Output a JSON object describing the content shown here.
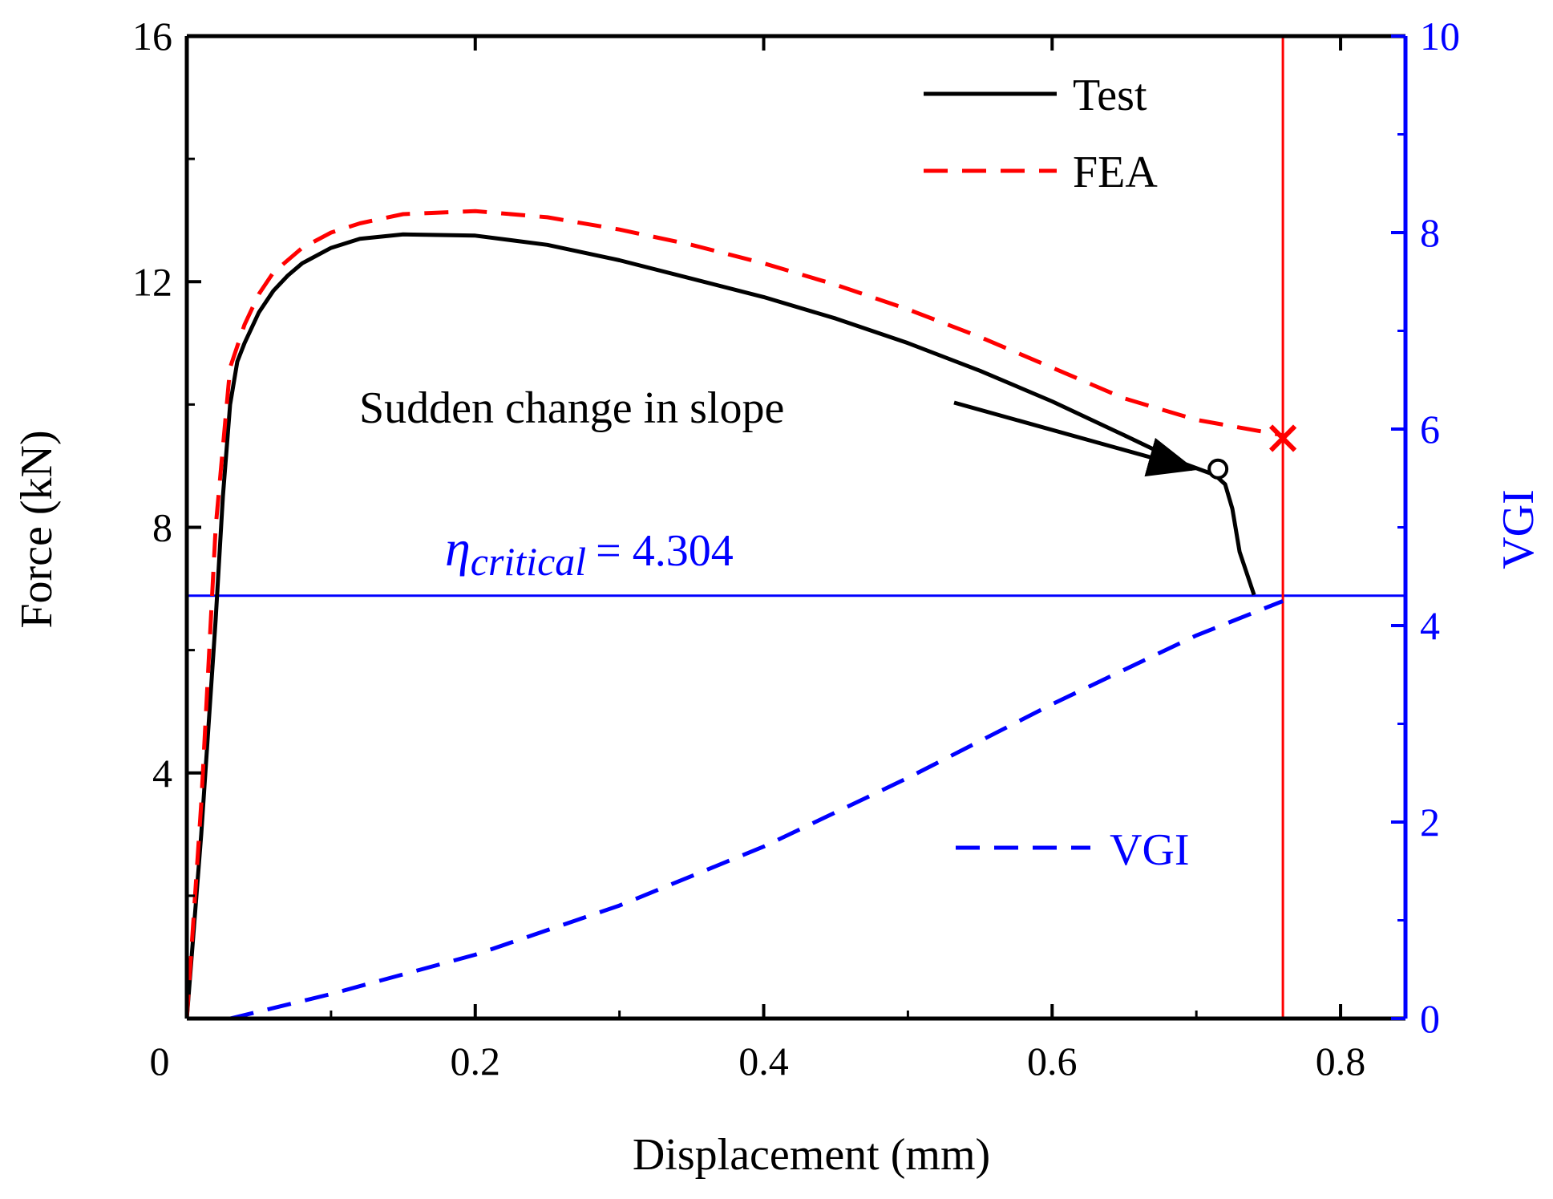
{
  "chart_data": {
    "type": "line",
    "xlabel": "Displacement (mm)",
    "ylabel_left": "Force (kN)",
    "ylabel_right": "VGI",
    "xlim": [
      0,
      0.845
    ],
    "ylim_left": [
      0,
      16
    ],
    "ylim_right": [
      0,
      10
    ],
    "x_ticks": [
      {
        "value": 0,
        "label": "0"
      },
      {
        "value": 0.2,
        "label": "0.2"
      },
      {
        "value": 0.4,
        "label": "0.4"
      },
      {
        "value": 0.6,
        "label": "0.6"
      },
      {
        "value": 0.8,
        "label": "0.8"
      }
    ],
    "y_left_ticks": [
      {
        "value": 4,
        "label": "4"
      },
      {
        "value": 8,
        "label": "8"
      },
      {
        "value": 12,
        "label": "12"
      },
      {
        "value": 16,
        "label": "16"
      }
    ],
    "y_right_ticks": [
      {
        "value": 0,
        "label": "0"
      },
      {
        "value": 2,
        "label": "2"
      },
      {
        "value": 4,
        "label": "4"
      },
      {
        "value": 6,
        "label": "6"
      },
      {
        "value": 8,
        "label": "8"
      },
      {
        "value": 10,
        "label": "10"
      }
    ],
    "grid": false,
    "legend_position": "top-right",
    "series": [
      {
        "name": "Test",
        "axis": "left",
        "color": "#000000",
        "style": "solid",
        "x": [
          0.0,
          0.01,
          0.02,
          0.025,
          0.03,
          0.035,
          0.04,
          0.05,
          0.06,
          0.07,
          0.08,
          0.1,
          0.12,
          0.15,
          0.2,
          0.25,
          0.3,
          0.35,
          0.4,
          0.45,
          0.5,
          0.55,
          0.6,
          0.65,
          0.69,
          0.713,
          0.72,
          0.725,
          0.73,
          0.74
        ],
        "y": [
          0.0,
          3.0,
          6.5,
          8.5,
          10.0,
          10.7,
          11.0,
          11.5,
          11.85,
          12.1,
          12.3,
          12.55,
          12.7,
          12.77,
          12.75,
          12.6,
          12.35,
          12.05,
          11.75,
          11.4,
          11.0,
          10.55,
          10.05,
          9.5,
          9.05,
          8.85,
          8.7,
          8.3,
          7.6,
          6.9
        ]
      },
      {
        "name": "FEA",
        "axis": "left",
        "color": "#ff0000",
        "style": "dashed",
        "x": [
          0.0,
          0.01,
          0.02,
          0.03,
          0.04,
          0.05,
          0.06,
          0.08,
          0.1,
          0.12,
          0.15,
          0.2,
          0.25,
          0.3,
          0.35,
          0.4,
          0.45,
          0.5,
          0.55,
          0.6,
          0.65,
          0.7,
          0.76
        ],
        "y": [
          0.0,
          3.5,
          8.0,
          10.6,
          11.3,
          11.8,
          12.15,
          12.55,
          12.8,
          12.95,
          13.1,
          13.15,
          13.05,
          12.85,
          12.6,
          12.3,
          11.95,
          11.55,
          11.1,
          10.6,
          10.1,
          9.75,
          9.5
        ]
      },
      {
        "name": "VGI",
        "axis": "right",
        "color": "#0000ff",
        "style": "dashed",
        "x": [
          0.03,
          0.1,
          0.2,
          0.3,
          0.4,
          0.5,
          0.6,
          0.7,
          0.76
        ],
        "y": [
          0.0,
          0.25,
          0.65,
          1.15,
          1.75,
          2.45,
          3.2,
          3.9,
          4.25
        ]
      }
    ],
    "markers": [
      {
        "type": "circle",
        "axis": "left",
        "x": 0.715,
        "y": 8.95
      },
      {
        "type": "x",
        "axis": "left",
        "x": 0.76,
        "y": 9.45,
        "color": "#ff0000"
      }
    ],
    "reference_lines": [
      {
        "orientation": "horizontal",
        "axis": "right",
        "value": 4.304,
        "color": "#0000ff"
      },
      {
        "orientation": "vertical",
        "value": 0.76,
        "color": "#ff0000"
      }
    ],
    "annotations": {
      "slope_text": "Sudden change in slope",
      "eta_symbol": "η",
      "eta_subscript": "critical",
      "eta_value": "= 4.304",
      "arrow_target": {
        "x": 0.705,
        "y": 8.95
      }
    }
  }
}
